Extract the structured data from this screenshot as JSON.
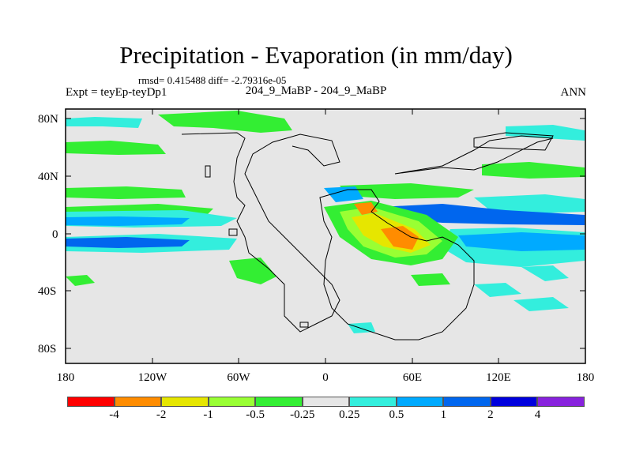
{
  "title": "Precipitation - Evaporation (in mm/day)",
  "stats": "rmsd= 0.415488 diff= -2.79316e-05",
  "subtitle": "204_9_MaBP - 204_9_MaBP",
  "experiment": "Expt = teyEp-teyDp1",
  "season": "ANN",
  "map": {
    "x_ticks": [
      "180",
      "120W",
      "60W",
      "0",
      "60E",
      "120E",
      "180"
    ],
    "y_ticks": [
      "80N",
      "40N",
      "0",
      "40S",
      "80S"
    ],
    "background_color": "#e6e6e6"
  },
  "colorbar": {
    "colors": [
      "#ff0000",
      "#ff8c00",
      "#e6e600",
      "#99ff33",
      "#33ee33",
      "#e6e6e6",
      "#33eedd",
      "#00aaff",
      "#0066ee",
      "#0000dd",
      "#8822dd"
    ],
    "labels": [
      "-4",
      "-2",
      "-1",
      "-0.5",
      "-0.25",
      "0.25",
      "0.5",
      "1",
      "2",
      "4"
    ]
  }
}
